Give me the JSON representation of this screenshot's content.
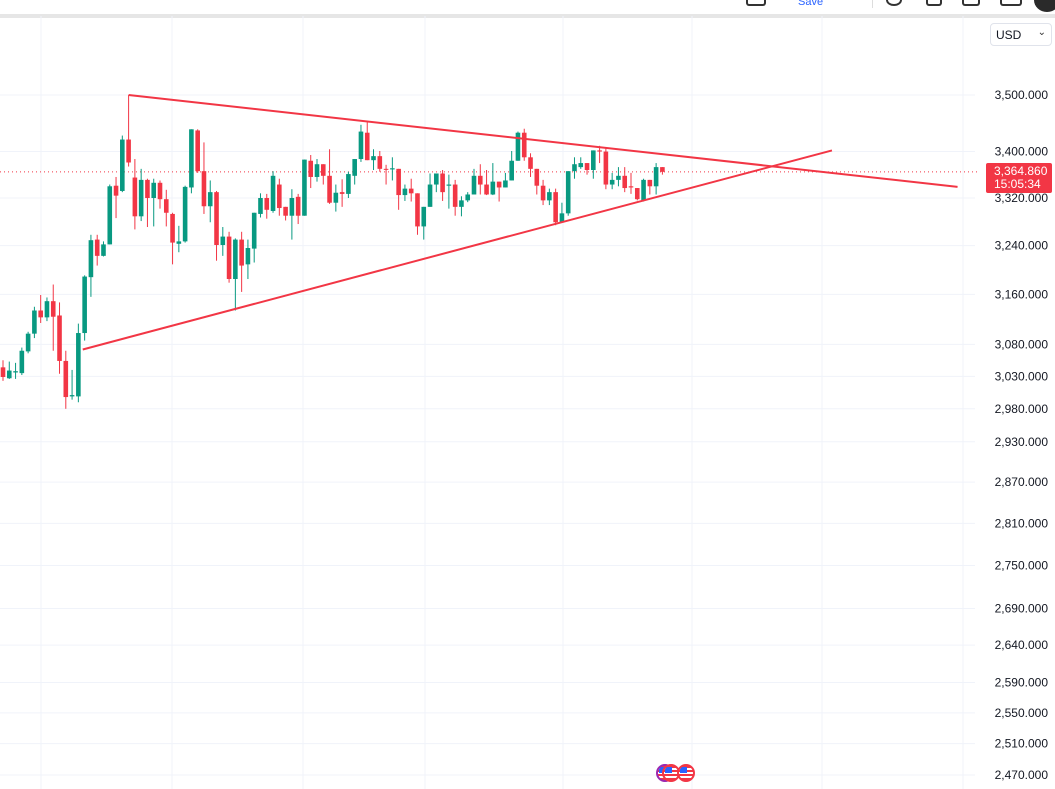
{
  "toolbar": {
    "save_label": "Save"
  },
  "currency_selector": {
    "value": "USD"
  },
  "price_tag": {
    "price": "3,364.860",
    "countdown": "15:05:34"
  },
  "colors": {
    "up": "#089981",
    "down": "#F23645",
    "trendline": "#F23645",
    "grid": "#F0F3FA"
  },
  "chart_data": {
    "type": "candlestick",
    "title": "",
    "y_scale": "log",
    "ylim": [
      2470,
      3500
    ],
    "y_ticks": [
      3500,
      3400,
      3320,
      3240,
      3160,
      3080,
      3030,
      2980,
      2930,
      2870,
      2810,
      2750,
      2690,
      2640,
      2590,
      2550,
      2510,
      2470
    ],
    "y_tick_labels": [
      "3,500.000",
      "3,400.000",
      "3,320.000",
      "3,240.000",
      "3,160.000",
      "3,080.000",
      "3,030.000",
      "2,980.000",
      "2,930.000",
      "2,870.000",
      "2,810.000",
      "2,750.000",
      "2,690.000",
      "2,640.000",
      "2,590.000",
      "2,550.000",
      "2,510.000",
      "2,470.000"
    ],
    "last_price": 3364.86,
    "ohlc_fields": [
      "open",
      "high",
      "low",
      "close"
    ],
    "candles": [
      [
        3044,
        3055,
        3023,
        3029
      ],
      [
        3027,
        3053,
        3026,
        3039
      ],
      [
        3036,
        3051,
        3026,
        3038
      ],
      [
        3035,
        3075,
        3032,
        3070
      ],
      [
        3069,
        3100,
        3066,
        3097
      ],
      [
        3097,
        3140,
        3090,
        3134
      ],
      [
        3134,
        3159,
        3114,
        3123
      ],
      [
        3123,
        3155,
        3117,
        3149
      ],
      [
        3149,
        3176,
        3070,
        3124
      ],
      [
        3126,
        3147,
        3034,
        3054
      ],
      [
        3054,
        3070,
        2980,
        2998
      ],
      [
        2999,
        3040,
        2994,
        3001
      ],
      [
        2999,
        3113,
        2990,
        3098
      ],
      [
        3098,
        3191,
        3086,
        3189
      ],
      [
        3188,
        3258,
        3156,
        3249
      ],
      [
        3250,
        3258,
        3207,
        3223
      ],
      [
        3223,
        3247,
        3222,
        3242
      ],
      [
        3242,
        3343,
        3242,
        3340
      ],
      [
        3341,
        3356,
        3286,
        3324
      ],
      [
        3332,
        3428,
        3330,
        3421
      ],
      [
        3421,
        3500,
        3374,
        3381
      ],
      [
        3355,
        3387,
        3267,
        3289
      ],
      [
        3289,
        3370,
        3281,
        3351
      ],
      [
        3351,
        3353,
        3271,
        3320
      ],
      [
        3320,
        3353,
        3272,
        3346
      ],
      [
        3346,
        3350,
        3302,
        3318
      ],
      [
        3318,
        3334,
        3272,
        3295
      ],
      [
        3293,
        3295,
        3209,
        3245
      ],
      [
        3243,
        3273,
        3229,
        3247
      ],
      [
        3247,
        3341,
        3245,
        3339
      ],
      [
        3338,
        3439,
        3328,
        3439
      ],
      [
        3437,
        3439,
        3363,
        3366
      ],
      [
        3366,
        3416,
        3293,
        3306
      ],
      [
        3306,
        3350,
        3279,
        3330
      ],
      [
        3330,
        3332,
        3215,
        3241
      ],
      [
        3241,
        3271,
        3223,
        3255
      ],
      [
        3255,
        3263,
        3179,
        3185
      ],
      [
        3185,
        3252,
        3134,
        3250
      ],
      [
        3250,
        3263,
        3164,
        3207
      ],
      [
        3209,
        3250,
        3185,
        3236
      ],
      [
        3235,
        3295,
        3212,
        3295
      ],
      [
        3293,
        3328,
        3287,
        3320
      ],
      [
        3320,
        3327,
        3285,
        3300
      ],
      [
        3298,
        3366,
        3295,
        3358
      ],
      [
        3343,
        3353,
        3290,
        3303
      ],
      [
        3305,
        3305,
        3282,
        3290
      ],
      [
        3290,
        3335,
        3250,
        3320
      ],
      [
        3322,
        3327,
        3276,
        3290
      ],
      [
        3290,
        3386,
        3290,
        3386
      ],
      [
        3384,
        3394,
        3337,
        3356
      ],
      [
        3356,
        3387,
        3348,
        3378
      ],
      [
        3378,
        3378,
        3343,
        3358
      ],
      [
        3358,
        3404,
        3310,
        3312
      ],
      [
        3312,
        3343,
        3297,
        3329
      ],
      [
        3330,
        3352,
        3305,
        3327
      ],
      [
        3327,
        3365,
        3320,
        3361
      ],
      [
        3358,
        3387,
        3343,
        3387
      ],
      [
        3387,
        3447,
        3382,
        3435
      ],
      [
        3433,
        3451,
        3385,
        3385
      ],
      [
        3385,
        3404,
        3368,
        3392
      ],
      [
        3392,
        3401,
        3365,
        3370
      ],
      [
        3370,
        3377,
        3343,
        3369
      ],
      [
        3369,
        3390,
        3350,
        3371
      ],
      [
        3370,
        3370,
        3300,
        3325
      ],
      [
        3325,
        3343,
        3315,
        3336
      ],
      [
        3336,
        3353,
        3314,
        3328
      ],
      [
        3328,
        3328,
        3258,
        3272
      ],
      [
        3272,
        3305,
        3250,
        3305
      ],
      [
        3305,
        3362,
        3305,
        3343
      ],
      [
        3343,
        3362,
        3330,
        3362
      ],
      [
        3362,
        3368,
        3315,
        3330
      ],
      [
        3341,
        3360,
        3302,
        3343
      ],
      [
        3343,
        3351,
        3290,
        3305
      ],
      [
        3305,
        3323,
        3289,
        3316
      ],
      [
        3316,
        3330,
        3313,
        3326
      ],
      [
        3326,
        3370,
        3326,
        3358
      ],
      [
        3358,
        3378,
        3326,
        3343
      ],
      [
        3343,
        3368,
        3325,
        3326
      ],
      [
        3326,
        3380,
        3325,
        3348
      ],
      [
        3348,
        3348,
        3314,
        3338
      ],
      [
        3338,
        3363,
        3338,
        3350
      ],
      [
        3350,
        3401,
        3350,
        3384
      ],
      [
        3384,
        3435,
        3384,
        3433
      ],
      [
        3433,
        3440,
        3384,
        3390
      ],
      [
        3390,
        3397,
        3356,
        3370
      ],
      [
        3370,
        3370,
        3326,
        3341
      ],
      [
        3341,
        3351,
        3308,
        3316
      ],
      [
        3316,
        3336,
        3308,
        3330
      ],
      [
        3330,
        3336,
        3274,
        3279
      ],
      [
        3279,
        3312,
        3279,
        3294
      ],
      [
        3294,
        3366,
        3290,
        3366
      ],
      [
        3366,
        3390,
        3353,
        3378
      ],
      [
        3373,
        3390,
        3370,
        3380
      ],
      [
        3380,
        3380,
        3360,
        3368
      ],
      [
        3368,
        3402,
        3353,
        3402
      ],
      [
        3402,
        3410,
        3380,
        3400
      ],
      [
        3400,
        3406,
        3335,
        3343
      ],
      [
        3343,
        3363,
        3335,
        3351
      ],
      [
        3351,
        3373,
        3340,
        3358
      ],
      [
        3358,
        3373,
        3330,
        3337
      ],
      [
        3340,
        3363,
        3327,
        3338
      ],
      [
        3337,
        3337,
        3316,
        3318
      ],
      [
        3316,
        3353,
        3314,
        3351
      ],
      [
        3351,
        3351,
        3326,
        3340
      ],
      [
        3340,
        3380,
        3326,
        3373
      ],
      [
        3373,
        3373,
        3360,
        3364.86
      ]
    ],
    "trendlines": [
      {
        "name": "upper",
        "from": {
          "index": 20,
          "price": 3500
        },
        "to": {
          "index": 152,
          "price": 3339
        }
      },
      {
        "name": "lower",
        "from": {
          "index": 12.7,
          "price": 3072
        },
        "to": {
          "index": 132,
          "price": 3402
        }
      }
    ]
  }
}
